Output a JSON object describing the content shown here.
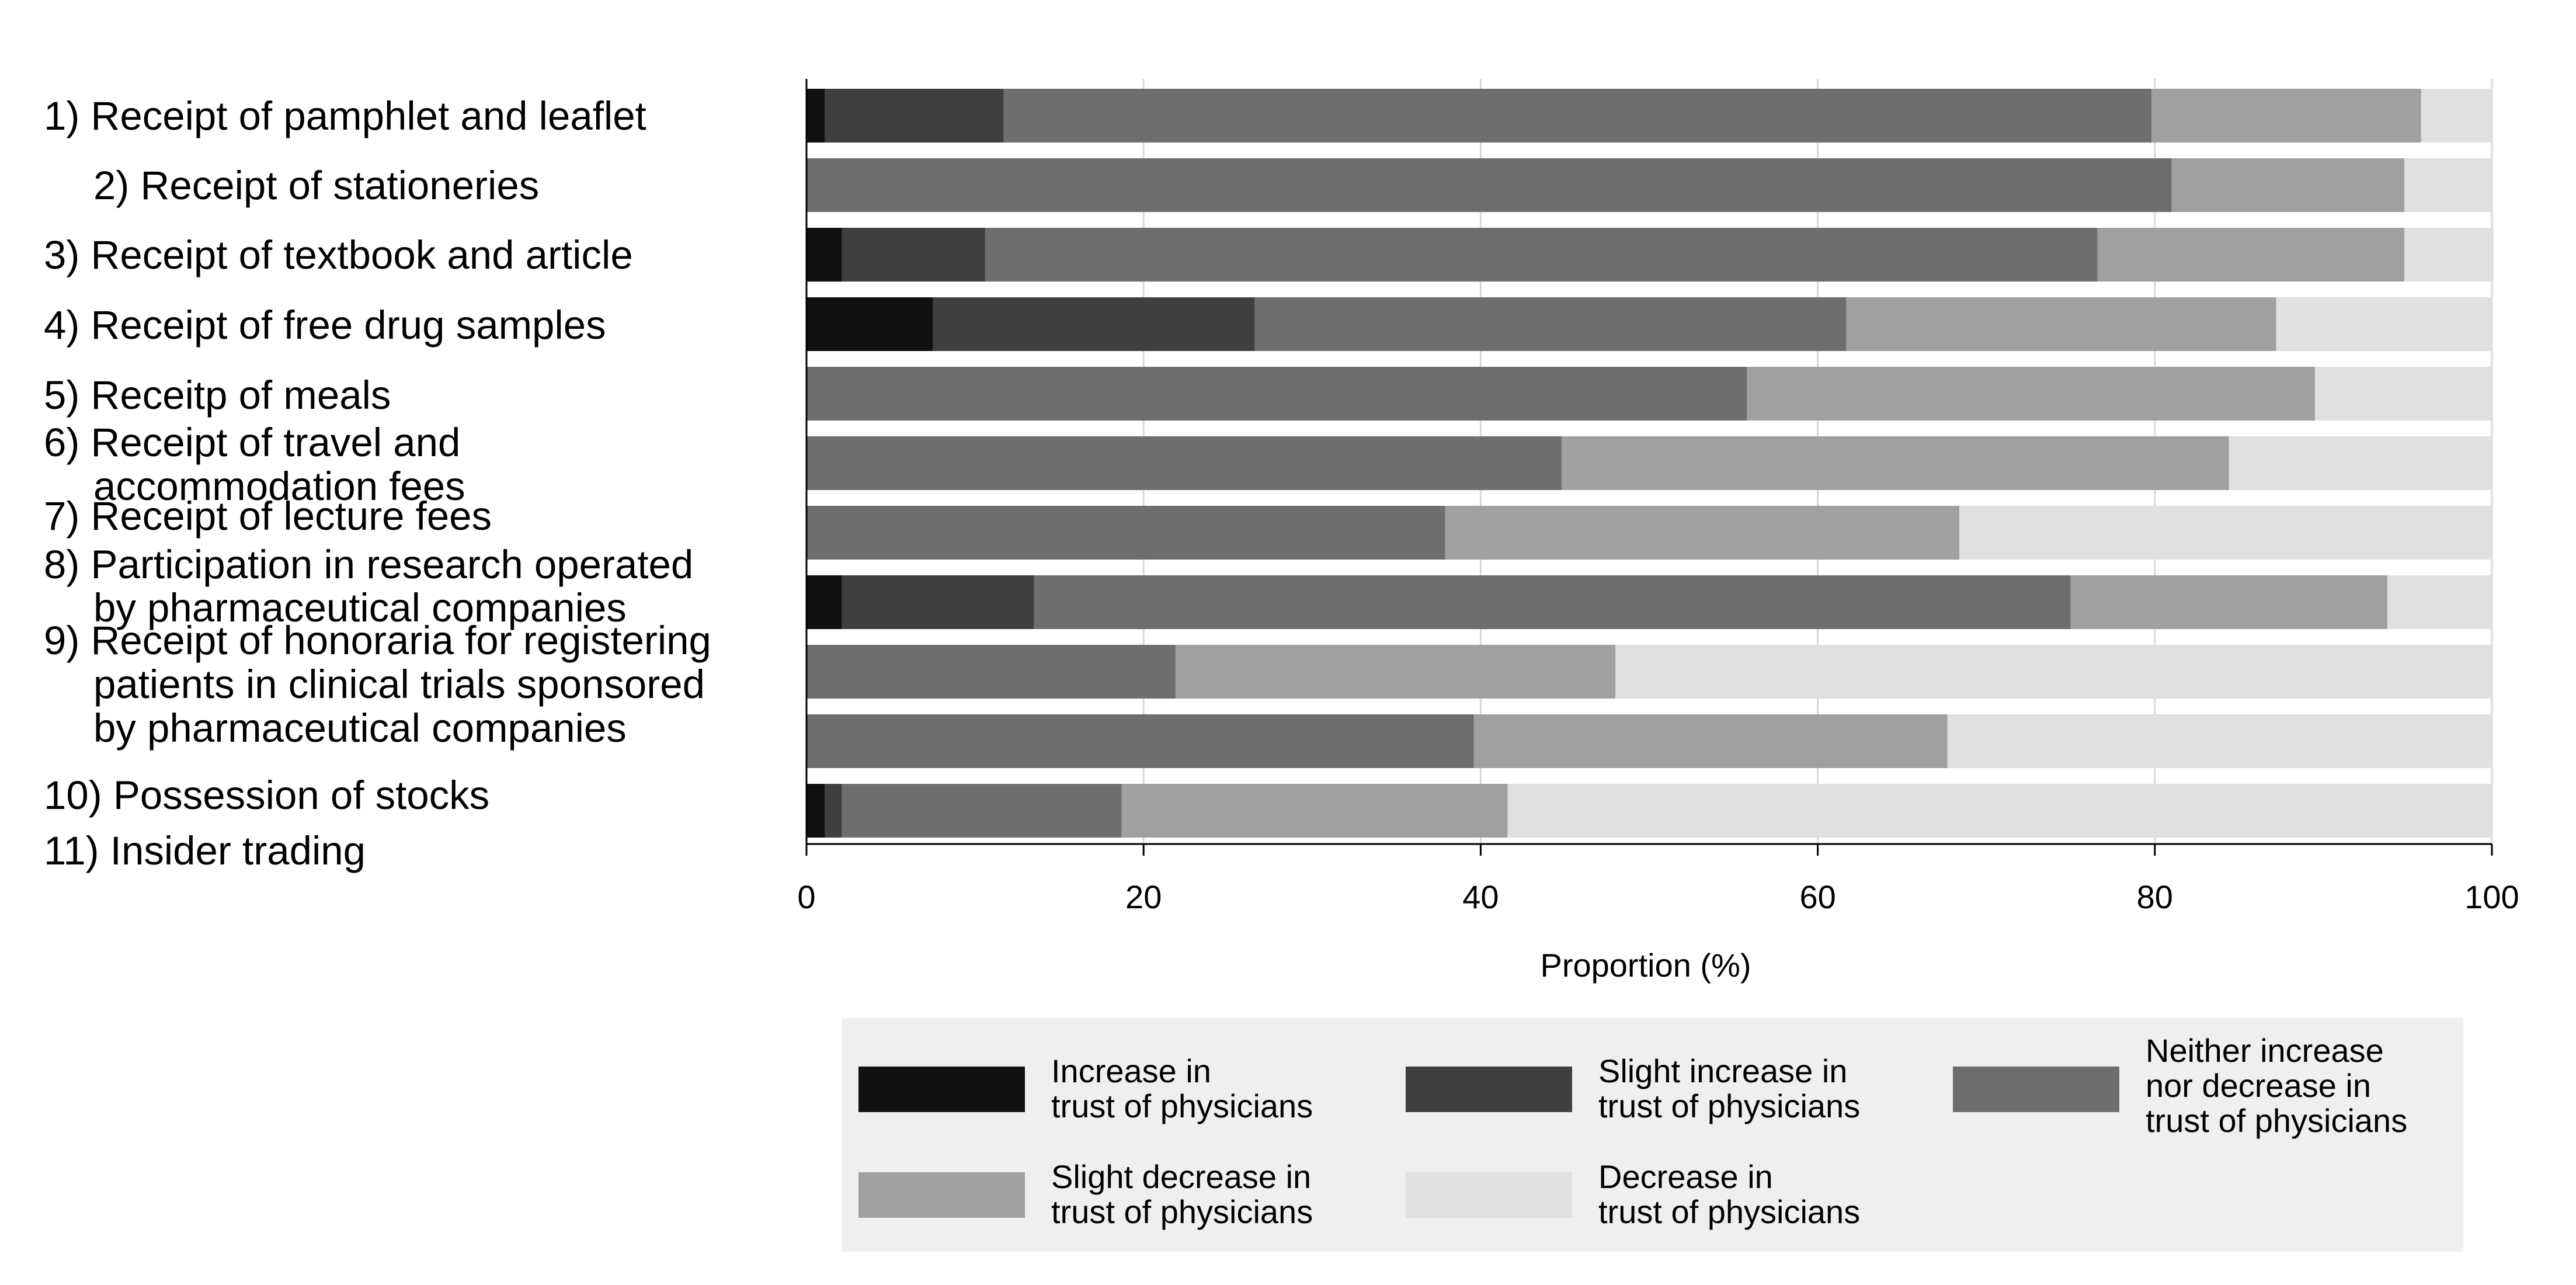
{
  "chart_data": {
    "type": "bar",
    "orientation": "horizontal",
    "stacked": true,
    "title": "",
    "xlabel": "Proportion (%)",
    "ylabel": "",
    "xlim": [
      0,
      100
    ],
    "xticks": [
      "0",
      "20",
      "40",
      "60",
      "80",
      "100"
    ],
    "grid": true,
    "legend_position": "bottom",
    "label_lines": [
      "1) Receipt of pamphlet and leaflet",
      "2) Receipt of stationeries",
      "3) Receipt of textbook and article",
      "4) Receipt of free drug samples",
      "5) Receitp of meals",
      "6) Receipt of travel and",
      "accommodation fees",
      "7) Receipt of lecture fees",
      "8) Participation in research operated",
      "by pharmaceutical companies",
      "9) Receipt of honoraria for registering",
      "patients in clinical trials sponsored",
      "by pharmaceutical companies",
      "10) Possession of stocks",
      "11) Insider trading"
    ],
    "series": [
      {
        "name": "Increase in trust of physicians",
        "legend_lines": [
          "Increase in",
          "trust of physicians"
        ],
        "color": "#111111",
        "values": [
          1.1,
          0,
          2.1,
          7.5,
          0,
          0,
          0,
          2.1,
          0,
          0,
          1.1
        ]
      },
      {
        "name": "Slight increase in trust of physicians",
        "legend_lines": [
          "Slight increase in",
          "trust of physicians"
        ],
        "color": "#3f3f3f",
        "values": [
          10.6,
          0,
          8.5,
          19.1,
          0,
          0,
          0,
          11.4,
          0,
          0,
          1.0
        ]
      },
      {
        "name": "Neither increase nor decrease in trust of physicians",
        "legend_lines": [
          "Neither increase",
          "nor decrease in",
          "trust of physicians"
        ],
        "color": "#6e6e6e",
        "values": [
          68.1,
          81.0,
          66.0,
          35.1,
          55.8,
          44.8,
          37.9,
          61.5,
          21.9,
          39.6,
          16.6
        ]
      },
      {
        "name": "Slight decrease in trust of physicians",
        "legend_lines": [
          "Slight decrease in",
          "trust of physicians"
        ],
        "color": "#a0a0a0",
        "values": [
          16.0,
          13.8,
          18.2,
          25.5,
          33.7,
          39.6,
          30.5,
          18.8,
          26.1,
          28.1,
          22.9
        ]
      },
      {
        "name": "Decrease in trust of physicians",
        "legend_lines": [
          "Decrease in",
          "trust of physicians"
        ],
        "color": "#e0e0e0",
        "values": [
          4.2,
          5.2,
          5.3,
          12.8,
          10.5,
          15.6,
          31.6,
          6.2,
          52.0,
          32.3,
          58.4
        ]
      }
    ]
  }
}
